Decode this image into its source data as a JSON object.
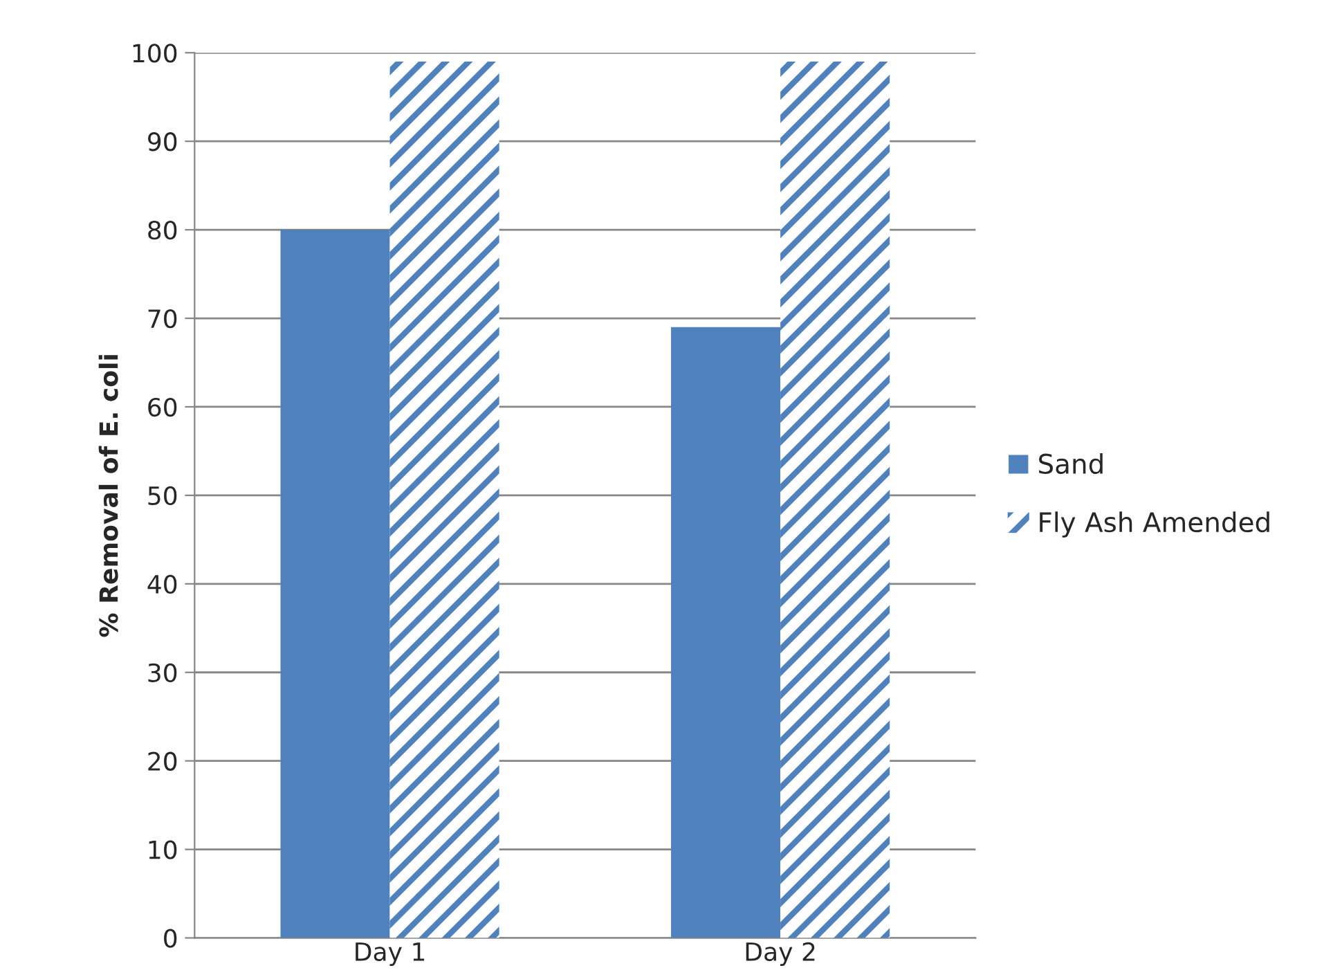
{
  "chart_data": {
    "type": "bar",
    "ylabel": "% Removal of E. coli",
    "categories": [
      "Day 1",
      "Day 2"
    ],
    "series": [
      {
        "name": "Sand",
        "color": "#4f81bd",
        "values": [
          80,
          69
        ]
      },
      {
        "name": "Fly Ash Amended",
        "color": "#4f81bd",
        "values": [
          99,
          99
        ]
      }
    ],
    "ylim": [
      0,
      100
    ],
    "yticks": [
      0,
      10,
      20,
      30,
      40,
      50,
      60,
      70,
      80,
      90,
      100
    ],
    "grid": "y",
    "legend": "right"
  }
}
